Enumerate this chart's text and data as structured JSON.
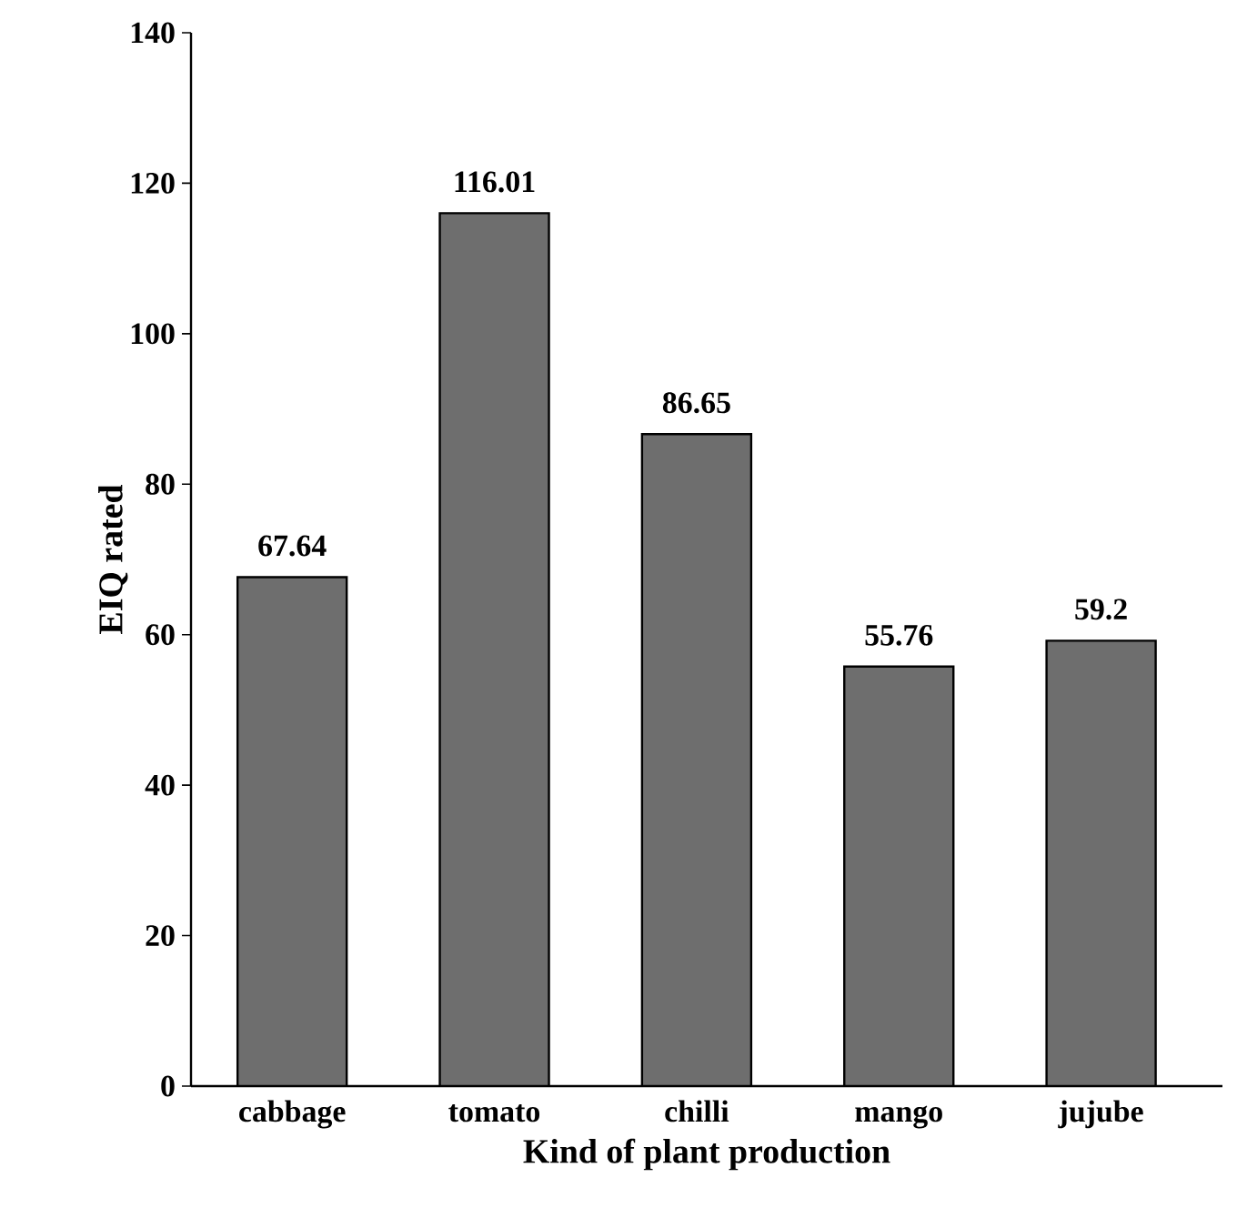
{
  "chart_data": {
    "type": "bar",
    "xlabel": "Kind of plant production",
    "ylabel": "EIQ rated",
    "categories": [
      "cabbage",
      "tomato",
      "chilli",
      "mango",
      "jujube"
    ],
    "values": [
      67.64,
      116.01,
      86.65,
      55.76,
      59.2
    ],
    "color": "#6e6e6e",
    "ylim": [
      0,
      140
    ],
    "yticks": [
      0,
      20,
      40,
      60,
      80,
      100,
      120,
      140
    ],
    "data_labels": true,
    "grid": false
  }
}
